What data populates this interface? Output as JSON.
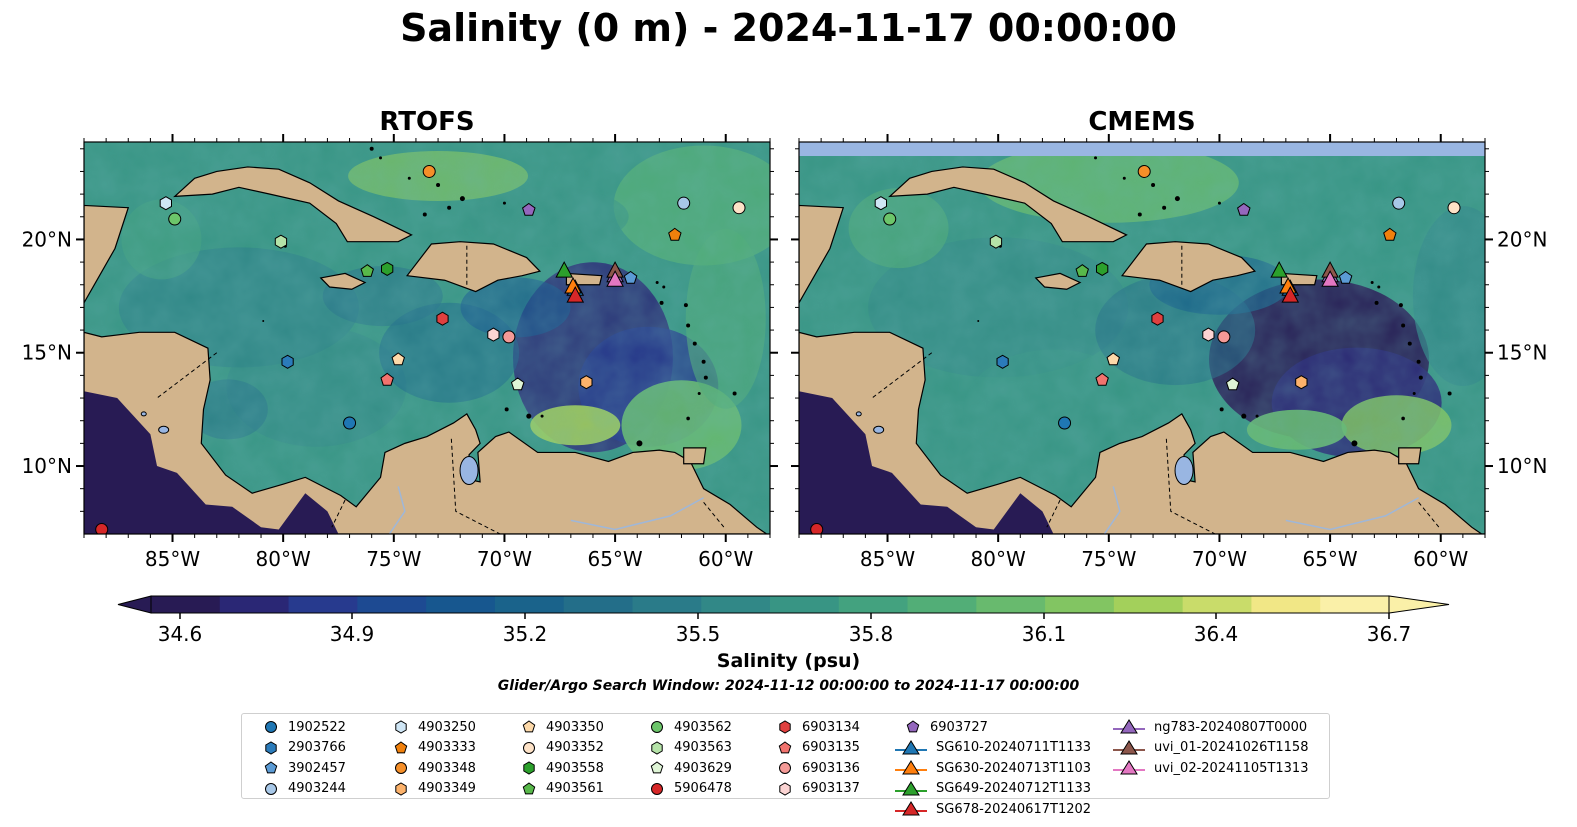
{
  "title": "Salinity (0 m) - 2024-11-17 00:00:00",
  "panels": [
    {
      "id": "rtofs",
      "title": "RTOFS"
    },
    {
      "id": "cmems",
      "title": "CMEMS"
    }
  ],
  "colors": {
    "land": "#d2b48c",
    "water_bodies": "#99b6e2",
    "missing_band": "#99b6e2",
    "colormap": [
      "#281b54",
      "#2a2775",
      "#273a8e",
      "#1d4a92",
      "#17578f",
      "#1a638b",
      "#236e89",
      "#2a7b89",
      "#318887",
      "#389584",
      "#43a27f",
      "#52ae77",
      "#68ba6e",
      "#82c562",
      "#a3d05b",
      "#c9dc6a",
      "#f1e786",
      "#faf0a8"
    ]
  },
  "chart_data": {
    "type": "heatmap",
    "variable": "Salinity",
    "colorbar": {
      "label": "Salinity (psu)",
      "ticks": [
        "34.6",
        "34.9",
        "35.2",
        "35.5",
        "35.8",
        "36.1",
        "36.4",
        "36.7"
      ],
      "range": [
        34.6,
        36.7
      ],
      "extend": "both"
    },
    "lon_range": [
      -89,
      -58
    ],
    "lat_range": [
      7,
      24.3
    ],
    "x_ticks": [
      "85°W",
      "80°W",
      "75°W",
      "70°W",
      "65°W",
      "60°W"
    ],
    "y_ticks": [
      "10°N",
      "15°N",
      "20°N"
    ],
    "search_window": "Glider/Argo Search Window: 2024-11-12 00:00:00 to 2024-11-17 00:00:00",
    "floats": [
      {
        "id": "1902522",
        "lon": -77.0,
        "lat": 11.9,
        "marker": "circle",
        "color": "#1f77b4"
      },
      {
        "id": "2903766",
        "lon": -79.8,
        "lat": 14.6,
        "marker": "hexagon",
        "color": "#2b7bba"
      },
      {
        "id": "3902457",
        "lon": -64.3,
        "lat": 18.3,
        "marker": "pentagon",
        "color": "#5b9bd5"
      },
      {
        "id": "4903244",
        "lon": -61.9,
        "lat": 21.6,
        "marker": "circle",
        "color": "#a8c8e8"
      },
      {
        "id": "4903250",
        "lon": -85.3,
        "lat": 21.6,
        "marker": "hexagon",
        "color": "#cfe6f5"
      },
      {
        "id": "4903333",
        "lon": -62.3,
        "lat": 20.2,
        "marker": "pentagon",
        "color": "#f0800c"
      },
      {
        "id": "4903348",
        "lon": -73.4,
        "lat": 23.0,
        "marker": "circle",
        "color": "#f58f29"
      },
      {
        "id": "4903349",
        "lon": -66.3,
        "lat": 13.7,
        "marker": "hexagon",
        "color": "#fcb26b"
      },
      {
        "id": "4903350",
        "lon": -74.8,
        "lat": 14.7,
        "marker": "pentagon",
        "color": "#fdd9a9"
      },
      {
        "id": "4903352",
        "lon": -59.4,
        "lat": 21.4,
        "marker": "circle",
        "color": "#fde2c7"
      },
      {
        "id": "4903558",
        "lon": -75.3,
        "lat": 18.7,
        "marker": "hexagon",
        "color": "#2ca02c"
      },
      {
        "id": "4903561",
        "lon": -76.2,
        "lat": 18.6,
        "marker": "pentagon",
        "color": "#58b84a"
      },
      {
        "id": "4903562",
        "lon": -84.9,
        "lat": 20.9,
        "marker": "circle",
        "color": "#6cc56a"
      },
      {
        "id": "4903563",
        "lon": -80.1,
        "lat": 19.9,
        "marker": "hexagon",
        "color": "#b5e3a8"
      },
      {
        "id": "4903629",
        "lon": -69.4,
        "lat": 13.6,
        "marker": "pentagon",
        "color": "#dff5d6"
      },
      {
        "id": "5906478",
        "lon": -88.2,
        "lat": 7.2,
        "marker": "circle",
        "color": "#d62728"
      },
      {
        "id": "6903134",
        "lon": -72.8,
        "lat": 16.5,
        "marker": "hexagon",
        "color": "#e0403f"
      },
      {
        "id": "6903135",
        "lon": -75.3,
        "lat": 13.8,
        "marker": "pentagon",
        "color": "#f2736e"
      },
      {
        "id": "6903136",
        "lon": -69.8,
        "lat": 15.7,
        "marker": "circle",
        "color": "#f49a97"
      },
      {
        "id": "6903137",
        "lon": -70.5,
        "lat": 15.8,
        "marker": "hexagon",
        "color": "#fbd4d3"
      },
      {
        "id": "6903727",
        "lon": -68.9,
        "lat": 21.3,
        "marker": "pentagon",
        "color": "#9467bd"
      }
    ],
    "gliders": [
      {
        "id": "SG610-20240711T1133",
        "lon": -66.8,
        "lat": 17.8,
        "color": "#1f77b4"
      },
      {
        "id": "SG630-20240713T1103",
        "lon": -66.9,
        "lat": 17.9,
        "color": "#ff7f0e"
      },
      {
        "id": "SG649-20240712T1133",
        "lon": -67.3,
        "lat": 18.6,
        "color": "#2ca02c"
      },
      {
        "id": "SG678-20240617T1202",
        "lon": -66.8,
        "lat": 17.5,
        "color": "#d62728"
      },
      {
        "id": "ng783-20240807T0000",
        "lon": -65.0,
        "lat": 18.4,
        "color": "#9467bd"
      },
      {
        "id": "uvi_01-20241026T1158",
        "lon": -65.0,
        "lat": 18.6,
        "color": "#8c564b"
      },
      {
        "id": "uvi_02-20241105T1313",
        "lon": -65.0,
        "lat": 18.2,
        "color": "#e377c2"
      }
    ]
  }
}
